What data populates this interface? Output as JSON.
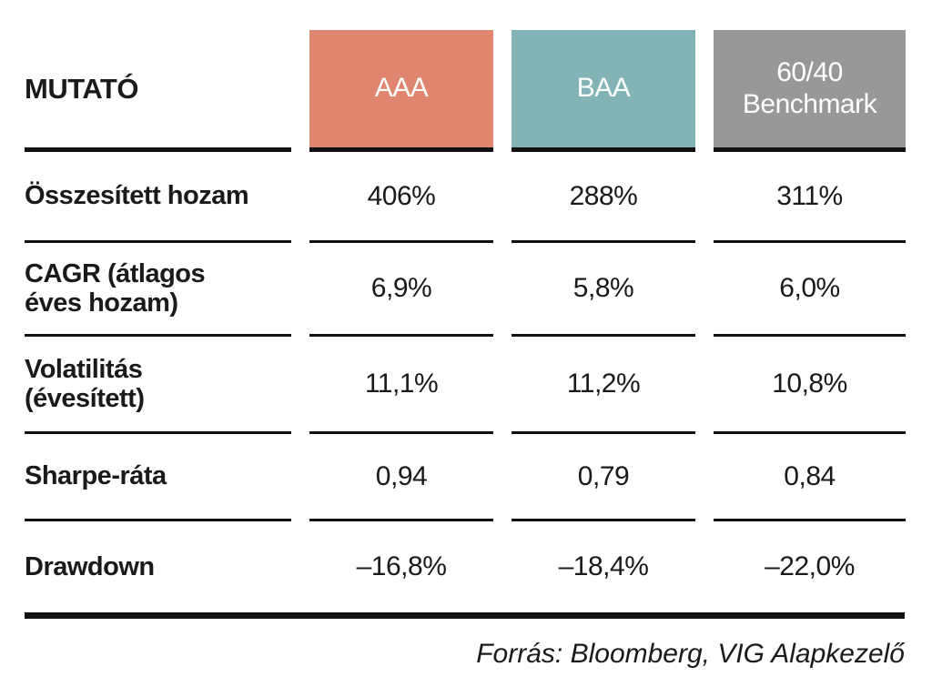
{
  "colors": {
    "column_aaa": "#df8570",
    "column_baa": "#82b3b6",
    "column_benchmark": "#999899",
    "rule": "#111111",
    "text": "#1a1a1a",
    "header_text": "#ffffff"
  },
  "table": {
    "header_label": "MUTATÓ",
    "columns": [
      {
        "label": "AAA",
        "color": "#df8570"
      },
      {
        "label": "BAA",
        "color": "#82b3b6"
      },
      {
        "label": "60/40 Benchmark",
        "color": "#999899"
      }
    ],
    "rows": [
      {
        "label": "Összesített hozam",
        "values": [
          "406%",
          "288%",
          "311%"
        ]
      },
      {
        "label": "CAGR (átlagos\néves hozam)",
        "values": [
          "6,9%",
          "5,8%",
          "6,0%"
        ]
      },
      {
        "label": "Volatilitás\n(évesített)",
        "values": [
          "11,1%",
          "11,2%",
          "10,8%"
        ]
      },
      {
        "label": "Sharpe-ráta",
        "values": [
          "0,94",
          "0,79",
          "0,84"
        ]
      },
      {
        "label": "Drawdown",
        "values": [
          "–16,8%",
          "–18,4%",
          "–22,0%"
        ]
      }
    ],
    "source_note": "Forrás: Bloomberg, VIG Alapkezelő"
  },
  "chart_data": {
    "type": "table",
    "columns": [
      "MUTATÓ",
      "AAA",
      "BAA",
      "60/40 Benchmark"
    ],
    "rows": [
      [
        "Összesített hozam",
        "406%",
        "288%",
        "311%"
      ],
      [
        "CAGR (átlagos éves hozam)",
        "6,9%",
        "5,8%",
        "6,0%"
      ],
      [
        "Volatilitás (évesített)",
        "11,1%",
        "11,2%",
        "10,8%"
      ],
      [
        "Sharpe-ráta",
        "0,94",
        "0,79",
        "0,84"
      ],
      [
        "Drawdown",
        "–16,8%",
        "–18,4%",
        "–22,0%"
      ]
    ],
    "source": "Forrás: Bloomberg, VIG Alapkezelő",
    "legend_position": "none",
    "notes": "Column header fills: AAA #df8570, BAA #82b3b6, 60/40 Benchmark #999899"
  }
}
